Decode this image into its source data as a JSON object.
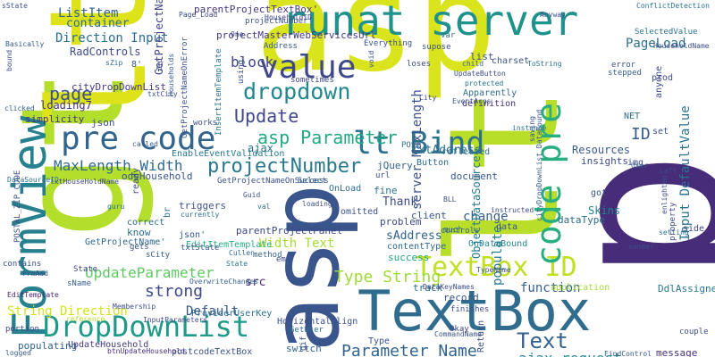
{
  "words": [
    {
      "text": "asp",
      "color": "#d9e41d"
    },
    {
      "text": "gt",
      "color": "#b4de2c"
    },
    {
      "text": "lt",
      "color": "#dde318"
    },
    {
      "text": "p",
      "color": "#472c7a"
    },
    {
      "text": "lt",
      "color": "#b8de29"
    },
    {
      "text": "TextBox",
      "color": "#2f6c8e"
    },
    {
      "text": "asp",
      "color": "#3a548c"
    },
    {
      "text": "runat server",
      "color": "#20928c"
    },
    {
      "text": "FormView",
      "color": "#27808e"
    },
    {
      "text": "DropDownList",
      "color": "#1f9a8a"
    },
    {
      "text": "TextBox ID",
      "color": "#c2df23"
    },
    {
      "text": "value",
      "color": "#3f4889"
    },
    {
      "text": "code pre",
      "color": "#29af7f"
    },
    {
      "text": "pre code",
      "color": "#32648e"
    },
    {
      "text": "lt Bind",
      "color": "#2c728e"
    },
    {
      "text": "Update",
      "color": "#3f4788"
    },
    {
      "text": "dropdown",
      "color": "#23888e"
    },
    {
      "text": "projectNumber",
      "color": "#2a788e"
    },
    {
      "text": "asp Parameter",
      "color": "#22a884"
    },
    {
      "text": "Text",
      "color": "#34618d"
    },
    {
      "text": "page",
      "color": "#3b528b"
    },
    {
      "text": "strong",
      "color": "#3e4989"
    },
    {
      "text": "Type String",
      "color": "#a0da39"
    },
    {
      "text": "Parameter Name",
      "color": "#33638d"
    },
    {
      "text": "ID",
      "color": "#375b8d"
    },
    {
      "text": "MaxLength Width",
      "color": "#31688e"
    },
    {
      "text": "block",
      "color": "#414487"
    },
    {
      "text": "UpdateParameter",
      "color": "#5ec962"
    },
    {
      "text": "ajax request",
      "color": "#238a8d"
    },
    {
      "text": "ListItem",
      "color": "#33638d"
    },
    {
      "text": "PageLoad",
      "color": "#2d708e"
    },
    {
      "text": "Direction Input",
      "color": "#2e6f8e"
    },
    {
      "text": "GetProjectName",
      "color": "#404588"
    },
    {
      "text": "populate",
      "color": "#297a8e"
    },
    {
      "text": "server MaxLength",
      "color": "#3b518b"
    },
    {
      "text": "Input DefaultValue",
      "color": "#2c738e"
    },
    {
      "text": "String Direction",
      "color": "#d2e21b"
    },
    {
      "text": "Default",
      "color": "#3a548c"
    },
    {
      "text": "change",
      "color": "#365d8d"
    },
    {
      "text": "Width Text",
      "color": "#a5db36"
    },
    {
      "text": "function",
      "color": "#355f8d"
    },
    {
      "text": "Thank",
      "color": "#3d4d8a"
    },
    {
      "text": "src",
      "color": "#482677"
    },
    {
      "text": "container",
      "color": "#306a8e"
    },
    {
      "text": "sAddress",
      "color": "#33638d"
    },
    {
      "text": "txtAddress",
      "color": "#2d708e"
    },
    {
      "text": "ObjectDataSource",
      "color": "#297b8e"
    },
    {
      "text": "parentProjectTextBox'",
      "color": "#453882"
    },
    {
      "text": "RadControls",
      "color": "#3e4a89"
    },
    {
      "text": "cityDropDownList",
      "color": "#443983"
    },
    {
      "text": "loading7",
      "color": "#472d7b"
    },
    {
      "text": "json",
      "color": "#3d4e8a"
    },
    {
      "text": "simplicity",
      "color": "#46327e"
    },
    {
      "text": "odsHousehold",
      "color": "#3b528b"
    },
    {
      "text": "projectMasterWebServicesUrl",
      "color": "#453781"
    },
    {
      "text": "Resources",
      "color": "#375a8c"
    },
    {
      "text": "insights",
      "color": "#3e4c8a"
    },
    {
      "text": "EnableEventValidation",
      "color": "#2a788e"
    },
    {
      "text": "parentProjectPanel'",
      "color": "#3e4989"
    },
    {
      "text": "jQuery",
      "color": "#32658e"
    },
    {
      "text": "Button",
      "color": "#306a8e"
    },
    {
      "text": "document",
      "color": "#375a8c"
    },
    {
      "text": "reflected",
      "color": "#2c728e"
    },
    {
      "text": "OnLoad",
      "color": "#2f6c8e"
    },
    {
      "text": "Skins",
      "color": "#27808e"
    },
    {
      "text": "client",
      "color": "#3a548c"
    },
    {
      "text": "OnDataBound",
      "color": "#24868e"
    },
    {
      "text": "dataType",
      "color": "#2f6b8e"
    },
    {
      "text": "contentType",
      "color": "#31688e"
    },
    {
      "text": "success",
      "color": "#22a884"
    },
    {
      "text": "fine",
      "color": "#2c738e"
    },
    {
      "text": "omitted",
      "color": "#3b528b"
    },
    {
      "text": "problem",
      "color": "#3f4788"
    },
    {
      "text": "triggers",
      "color": "#3b528b"
    },
    {
      "text": "know",
      "color": "#2e6e8e"
    },
    {
      "text": "correct",
      "color": "#2f6b8e"
    },
    {
      "text": "GetProjectName'",
      "color": "#31688e"
    },
    {
      "text": "json'",
      "color": "#375a8c"
    },
    {
      "text": "EditItemTemplate",
      "color": "#25ac82"
    },
    {
      "text": "ProviderUserKey",
      "color": "#2c728e"
    },
    {
      "text": "HorizontalAlign",
      "color": "#3b528b"
    },
    {
      "text": "UpdateHousehold",
      "color": "#443a83"
    },
    {
      "text": "postcodeTextBox",
      "color": "#3a548c"
    },
    {
      "text": "btnUpdateHousehold",
      "color": "#46307e"
    },
    {
      "text": "populating",
      "color": "#34608d"
    },
    {
      "text": "record",
      "color": "#3b528b"
    },
    {
      "text": "track",
      "color": "#2e6e8e"
    },
    {
      "text": "Return",
      "color": "#3e4a89"
    },
    {
      "text": "message",
      "color": "#472f7d"
    },
    {
      "text": "couple",
      "color": "#3d4e8a"
    },
    {
      "text": "application",
      "color": "#a5db36"
    },
    {
      "text": "DdlAssigned",
      "color": "#2b758e"
    },
    {
      "text": "switch",
      "color": "#33638d"
    },
    {
      "text": "Type",
      "color": "#3b528b"
    },
    {
      "text": "GetUser",
      "color": "#2c728e"
    },
    {
      "text": "State",
      "color": "#404588"
    },
    {
      "text": "sName",
      "color": "#365c8d"
    },
    {
      "text": "contains",
      "color": "#3d4d8a"
    },
    {
      "text": "FrmAdd",
      "color": "#3b528b"
    },
    {
      "text": "EditTemplate",
      "color": "#482475"
    },
    {
      "text": "InputParameters",
      "color": "#3e4989"
    },
    {
      "text": "portion",
      "color": "#3f4788"
    },
    {
      "text": "logged",
      "color": "#375a8c"
    },
    {
      "text": "reference",
      "color": "#b5de2b"
    },
    {
      "text": "Membership",
      "color": "#3e4c8a"
    },
    {
      "text": "OverwriteChanges",
      "color": "#34618d"
    },
    {
      "text": "txtState",
      "color": "#3b528b"
    },
    {
      "text": "sCity",
      "color": "#365d8d"
    },
    {
      "text": "em",
      "color": "#3e4a89"
    },
    {
      "text": "method",
      "color": "#33638d"
    },
    {
      "text": "Cullen",
      "color": "#31688e"
    },
    {
      "text": "State",
      "color": "#2c738e"
    },
    {
      "text": "gets",
      "color": "#3b528b"
    },
    {
      "text": "currently",
      "color": "#2e6e8e"
    },
    {
      "text": "loading",
      "color": "#3d4e8a"
    },
    {
      "text": "Guid",
      "color": "#3a548c"
    },
    {
      "text": "val",
      "color": "#2c728e"
    },
    {
      "text": "ready",
      "color": "#3e4c8a"
    },
    {
      "text": "guru",
      "color": "#2e6f8e"
    },
    {
      "text": "GetProjectNameOnSuccess",
      "color": "#3b528b"
    },
    {
      "text": "Select",
      "color": "#34618d"
    },
    {
      "text": "txtHouseHoldName",
      "color": "#3f4788"
    },
    {
      "text": "called",
      "color": "#375a8c"
    },
    {
      "text": "ajax",
      "color": "#2c728e"
    },
    {
      "text": "works",
      "color": "#3b528b"
    },
    {
      "text": "POST'",
      "color": "#2e6e8e"
    },
    {
      "text": "url",
      "color": "#3e4c8a"
    },
    {
      "text": "definition",
      "color": "#472d7b"
    },
    {
      "text": "EventArgs",
      "color": "#3b528b"
    },
    {
      "text": "protected",
      "color": "#2c728e"
    },
    {
      "text": "Apparently",
      "color": "#2f6c8e"
    },
    {
      "text": "UpdateButton",
      "color": "#3e4a89"
    },
    {
      "text": "sometimes",
      "color": "#3f4788"
    },
    {
      "text": "using",
      "color": "#3b528b"
    },
    {
      "text": "loses",
      "color": "#3e4c8a"
    },
    {
      "text": "child",
      "color": "#365d8d"
    },
    {
      "text": "charset",
      "color": "#3b528b"
    },
    {
      "text": "ToString",
      "color": "#2e6e8e"
    },
    {
      "text": "supose",
      "color": "#3d4e8a"
    },
    {
      "text": "var",
      "color": "#2c728e"
    },
    {
      "text": "Page_Load",
      "color": "#3f4788"
    },
    {
      "text": "sState",
      "color": "#3b528b"
    },
    {
      "text": "Basically",
      "color": "#365d8d"
    },
    {
      "text": "bound",
      "color": "#3e4c8a"
    },
    {
      "text": "sZip",
      "color": "#2e6e8e"
    },
    {
      "text": "list",
      "color": "#3b528b"
    },
    {
      "text": "City",
      "color": "#3f4788"
    },
    {
      "text": "instance",
      "color": "#2c728e"
    },
    {
      "text": "saving",
      "color": "#3b528b"
    },
    {
      "text": "clicked",
      "color": "#365d8d"
    },
    {
      "text": "HouseholdName",
      "color": "#3e4c8a"
    },
    {
      "text": "SelectedValue",
      "color": "#2c728e"
    },
    {
      "text": "error",
      "color": "#3b528b"
    },
    {
      "text": "stepped",
      "color": "#365d8d"
    },
    {
      "text": "prod",
      "color": "#3e4c8a"
    },
    {
      "text": "anyone",
      "color": "#3f4788"
    },
    {
      "text": "NET",
      "color": "#2e6e8e"
    },
    {
      "text": "set",
      "color": "#3b528b"
    },
    {
      "text": "img",
      "color": "#3d4e8a"
    },
    {
      "text": "User",
      "color": "#365d8d"
    },
    {
      "text": "Left",
      "color": "#3e4c8a"
    },
    {
      "text": "got",
      "color": "#3b528b"
    },
    {
      "text": "side",
      "color": "#3f4788"
    },
    {
      "text": "setting",
      "color": "#2c728e"
    },
    {
      "text": "sender",
      "color": "#3b528b"
    },
    {
      "text": "FindControl",
      "color": "#365d8d"
    },
    {
      "text": "DataKeyNames",
      "color": "#3e4c8a"
    },
    {
      "text": "TypeName",
      "color": "#3b528b"
    },
    {
      "text": "much",
      "color": "#2e6e8e"
    },
    {
      "text": "BLL",
      "color": "#3d4e8a"
    },
    {
      "text": "data",
      "color": "#3b528b"
    },
    {
      "text": "controls",
      "color": "#365d8d"
    },
    {
      "text": "finishes",
      "color": "#3e4c8a"
    },
    {
      "text": "CommandName",
      "color": "#3b528b"
    },
    {
      "text": "Okay",
      "color": "#3f4788"
    },
    {
      "text": "Anyway",
      "color": "#3b528b"
    },
    {
      "text": "ConflictDetection",
      "color": "#2c728e"
    },
    {
      "text": "Everything",
      "color": "#3b528b"
    },
    {
      "text": "Address",
      "color": "#365d8d"
    },
    {
      "text": "One",
      "color": "#3e4c8a"
    },
    {
      "text": "projectNumber'",
      "color": "#3b528b"
    },
    {
      "text": "HouseholdID",
      "color": "#3f4788"
    },
    {
      "text": "GetProjectNameOnError",
      "color": "#3b528b"
    },
    {
      "text": "Households",
      "color": "#365d8d"
    },
    {
      "text": "Zip",
      "color": "#3e4c8a"
    },
    {
      "text": "txtCity",
      "color": "#3b528b"
    },
    {
      "text": "InsertItemTemplate",
      "color": "#2c728e"
    },
    {
      "text": "void",
      "color": "#3b528b"
    },
    {
      "text": "br",
      "color": "#2e6e8e"
    },
    {
      "text": "gif",
      "color": "#3b528b"
    },
    {
      "text": "property",
      "color": "#3f4788"
    },
    {
      "text": "enlighten",
      "color": "#3b528b"
    },
    {
      "text": "cityDropDownList_DataBound",
      "color": "#365d8d"
    },
    {
      "text": "instructed",
      "color": "#3e4c8a"
    },
    {
      "text": "POSTAL_ZIP_CODE",
      "color": "#3b528b"
    },
    {
      "text": "DataSourceID",
      "color": "#2c728e"
    },
    {
      "text": "8'",
      "color": "#3b528b"
    }
  ]
}
